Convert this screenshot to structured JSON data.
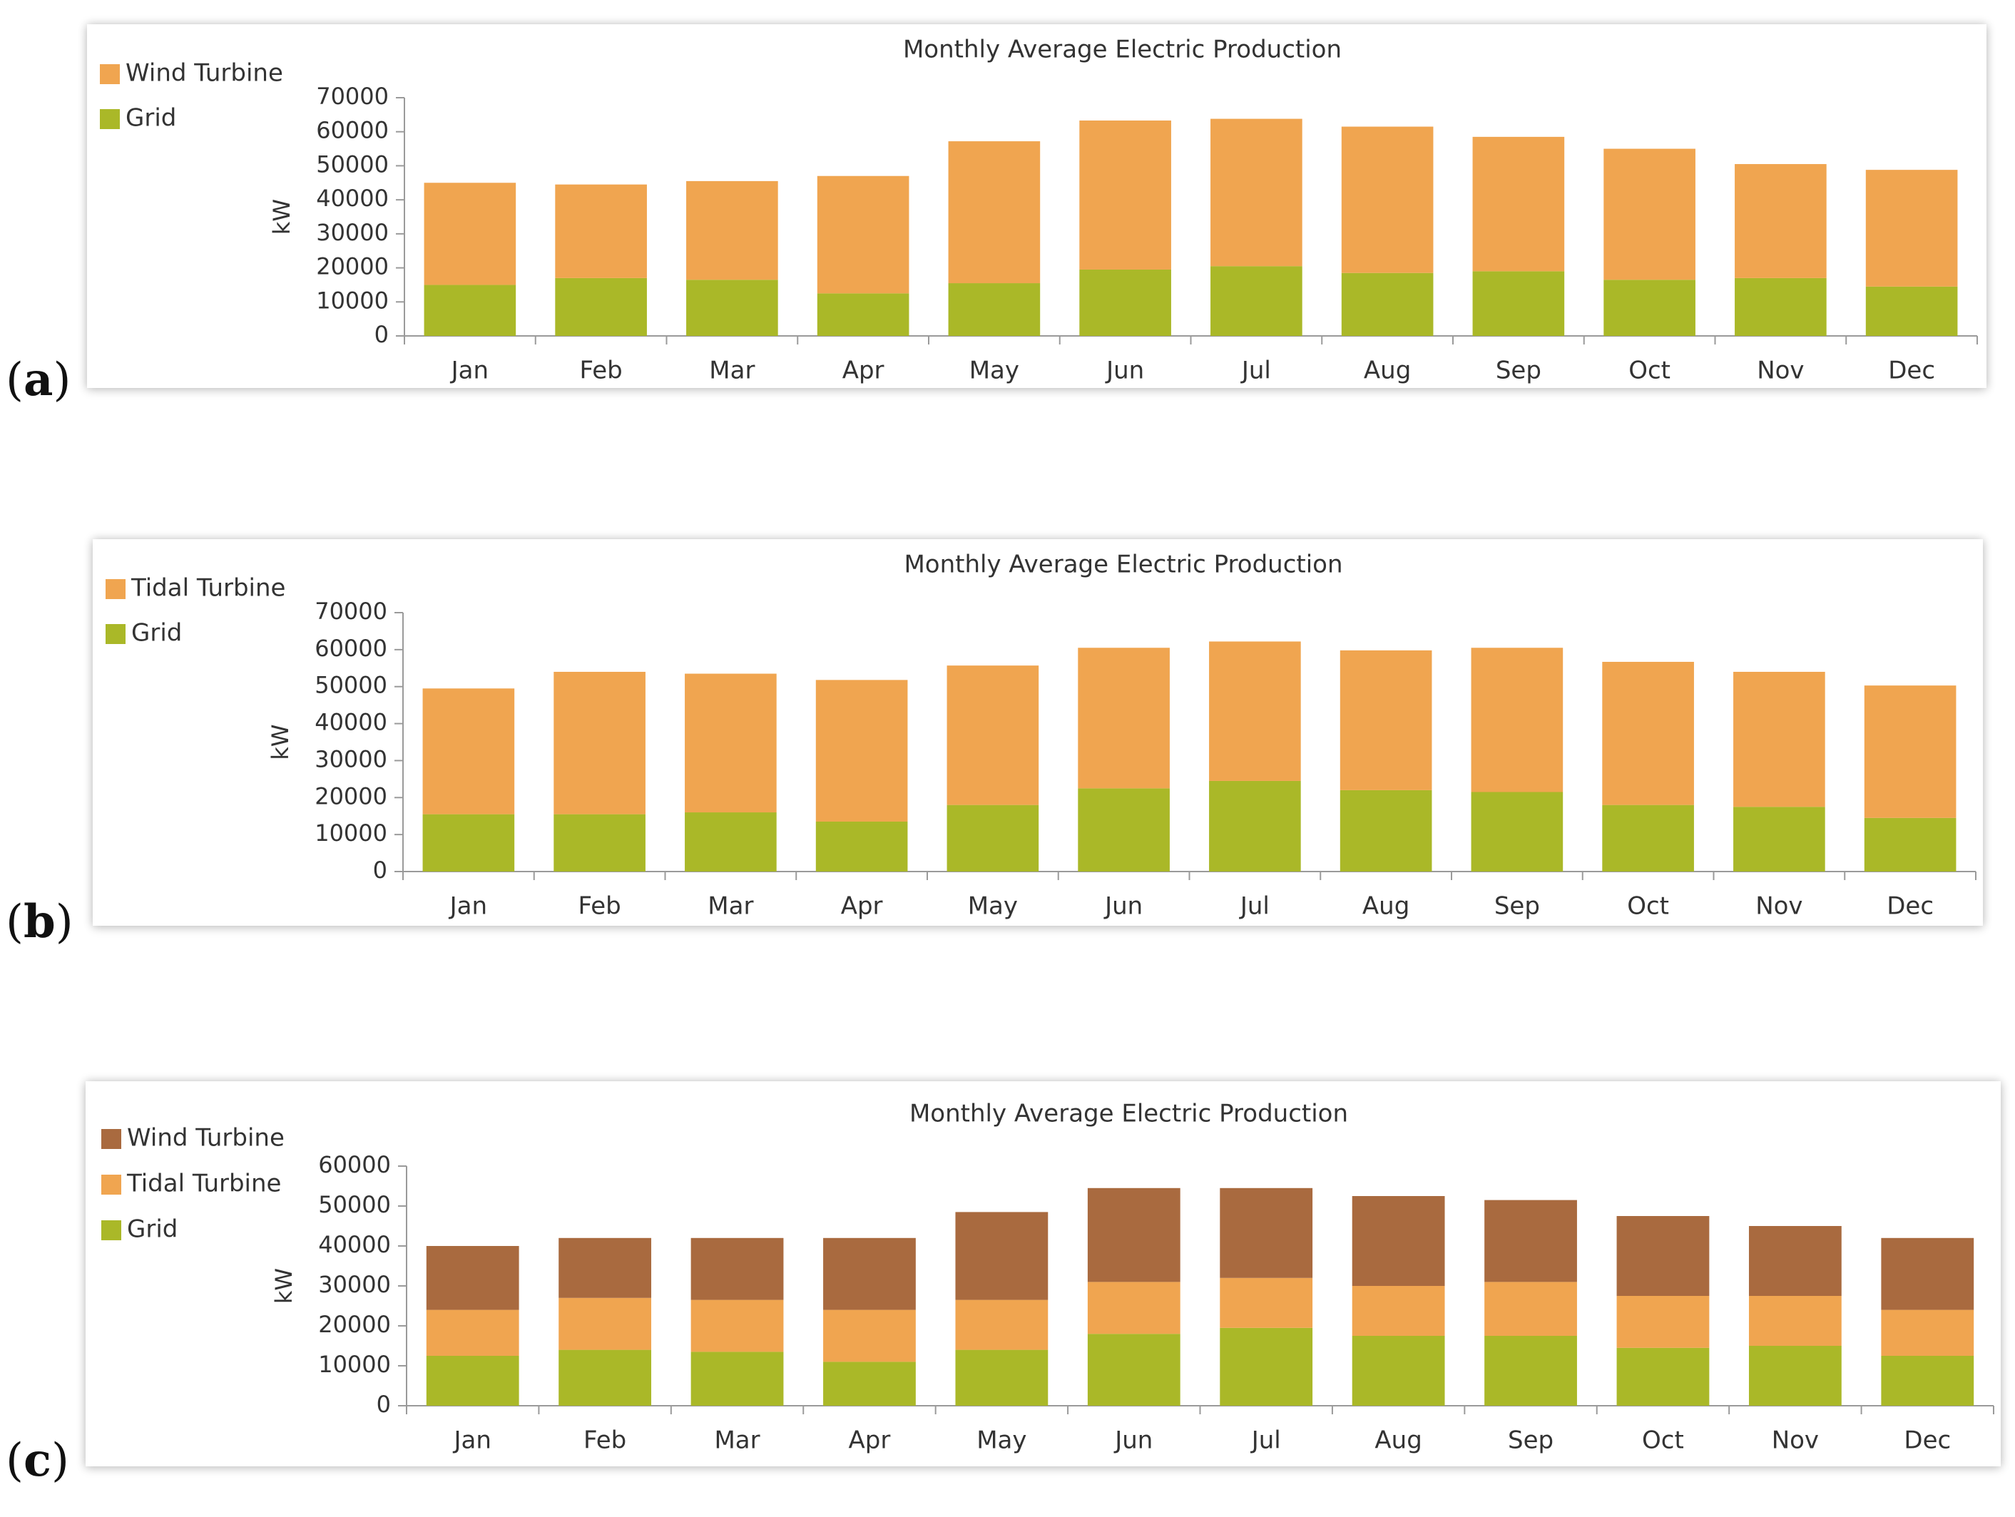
{
  "figure": {
    "panel_labels": [
      {
        "open": "(",
        "letter": "a",
        "close": ")"
      },
      {
        "open": "(",
        "letter": "b",
        "close": ")"
      },
      {
        "open": "(",
        "letter": "c",
        "close": ")"
      }
    ]
  },
  "colors": {
    "wind": "#F0A550",
    "tidal": "#F0A550",
    "grid": "#AAB828",
    "wind_c": "#A96A3F",
    "tidal_c": "#F0A550",
    "axis": "#9a9a9a",
    "text": "#333333"
  },
  "chart_data": [
    {
      "type": "bar",
      "stacked": true,
      "title": "Monthly Average Electric Production",
      "xlabel": "",
      "ylabel": "kW",
      "ylim": [
        0,
        70000
      ],
      "yticks": [
        0,
        10000,
        20000,
        30000,
        40000,
        50000,
        60000,
        70000
      ],
      "legend_position": "left",
      "categories": [
        "Jan",
        "Feb",
        "Mar",
        "Apr",
        "May",
        "Jun",
        "Jul",
        "Aug",
        "Sep",
        "Oct",
        "Nov",
        "Dec"
      ],
      "series": [
        {
          "name": "Grid",
          "color_key": "grid",
          "values": [
            15000,
            17000,
            16500,
            12500,
            15500,
            19500,
            20500,
            18500,
            19000,
            16500,
            17000,
            14500
          ]
        },
        {
          "name": "Wind Turbine",
          "color_key": "wind",
          "values": [
            30000,
            27500,
            29000,
            34500,
            41700,
            43800,
            43300,
            43000,
            39500,
            38500,
            33500,
            34300
          ]
        }
      ]
    },
    {
      "type": "bar",
      "stacked": true,
      "title": "Monthly Average Electric Production",
      "xlabel": "",
      "ylabel": "kW",
      "ylim": [
        0,
        70000
      ],
      "yticks": [
        0,
        10000,
        20000,
        30000,
        40000,
        50000,
        60000,
        70000
      ],
      "legend_position": "left",
      "categories": [
        "Jan",
        "Feb",
        "Mar",
        "Apr",
        "May",
        "Jun",
        "Jul",
        "Aug",
        "Sep",
        "Oct",
        "Nov",
        "Dec"
      ],
      "series": [
        {
          "name": "Grid",
          "color_key": "grid",
          "values": [
            15500,
            15500,
            16000,
            13500,
            18000,
            22500,
            24500,
            22000,
            21500,
            18000,
            17500,
            14500
          ]
        },
        {
          "name": "Tidal Turbine",
          "color_key": "tidal",
          "values": [
            34000,
            38500,
            37500,
            38300,
            37700,
            38000,
            37700,
            37800,
            39000,
            38700,
            36500,
            35800
          ]
        }
      ]
    },
    {
      "type": "bar",
      "stacked": true,
      "title": "Monthly Average Electric Production",
      "xlabel": "",
      "ylabel": "kW",
      "ylim": [
        0,
        60000
      ],
      "yticks": [
        0,
        10000,
        20000,
        30000,
        40000,
        50000,
        60000
      ],
      "legend_position": "left",
      "categories": [
        "Jan",
        "Feb",
        "Mar",
        "Apr",
        "May",
        "Jun",
        "Jul",
        "Aug",
        "Sep",
        "Oct",
        "Nov",
        "Dec"
      ],
      "series": [
        {
          "name": "Grid",
          "color_key": "grid",
          "values": [
            12500,
            14000,
            13500,
            11000,
            14000,
            18000,
            19500,
            17500,
            17500,
            14500,
            15000,
            12500
          ]
        },
        {
          "name": "Tidal Turbine",
          "color_key": "tidal_c",
          "values": [
            11500,
            13000,
            13000,
            13000,
            12500,
            13000,
            12500,
            12500,
            13500,
            13000,
            12500,
            11500
          ]
        },
        {
          "name": "Wind Turbine",
          "color_key": "wind_c",
          "values": [
            16000,
            15000,
            15500,
            18000,
            22000,
            23500,
            22500,
            22500,
            20500,
            20000,
            17500,
            18000
          ]
        }
      ]
    }
  ]
}
